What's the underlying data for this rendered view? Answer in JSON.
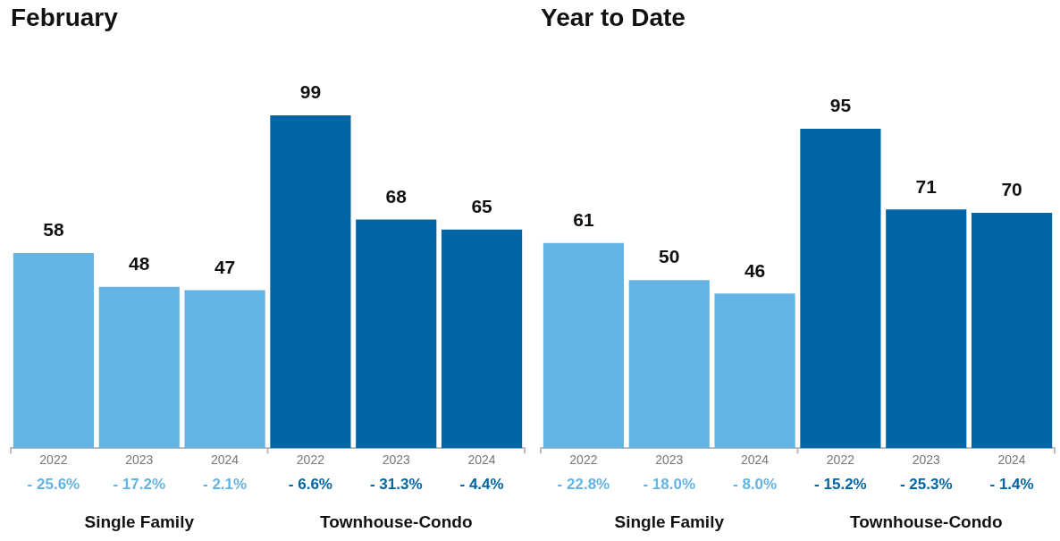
{
  "chart_data": [
    {
      "type": "bar",
      "title": "February",
      "categories": [
        "2022",
        "2023",
        "2024",
        "2022",
        "2023",
        "2024"
      ],
      "values": [
        58,
        48,
        47,
        99,
        68,
        65
      ],
      "colors": [
        "#63b4e4",
        "#63b4e4",
        "#63b4e4",
        "#0065a4",
        "#0065a4",
        "#0065a4"
      ],
      "data_labels": true,
      "grid": false,
      "legend": false,
      "tick_labels": "x",
      "annotations": [
        "- 25.6%",
        "- 17.2%",
        "- 2.1%",
        "- 6.6%",
        "- 31.3%",
        "- 4.4%",
        "Single Family",
        "Townhouse-Condo"
      ]
    },
    {
      "type": "bar",
      "title": "Year to Date",
      "categories": [
        "2022",
        "2023",
        "2024",
        "2022",
        "2023",
        "2024"
      ],
      "values": [
        61,
        50,
        46,
        95,
        71,
        70
      ],
      "colors": [
        "#63b4e4",
        "#63b4e4",
        "#63b4e4",
        "#0065a4",
        "#0065a4",
        "#0065a4"
      ],
      "data_labels": true,
      "grid": false,
      "legend": false,
      "tick_labels": "x",
      "annotations": [
        "- 22.8%",
        "- 18.0%",
        "- 8.0%",
        "- 15.2%",
        "- 25.3%",
        "- 1.4%",
        "Single Family",
        "Townhouse-Condo"
      ]
    }
  ]
}
